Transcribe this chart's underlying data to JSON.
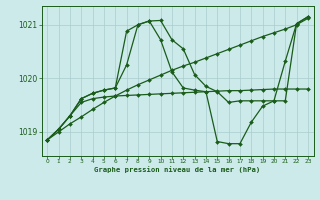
{
  "background_color": "#cceaea",
  "grid_color": "#aacccc",
  "line_color": "#1a5c1a",
  "title": "Graphe pression niveau de la mer (hPa)",
  "xlim": [
    -0.5,
    23.5
  ],
  "ylim": [
    1018.55,
    1021.35
  ],
  "yticks": [
    1019,
    1020,
    1021
  ],
  "xticks": [
    0,
    1,
    2,
    3,
    4,
    5,
    6,
    7,
    8,
    9,
    10,
    11,
    12,
    13,
    14,
    15,
    16,
    17,
    18,
    19,
    20,
    21,
    22,
    23
  ],
  "y_diag": [
    1018.85,
    1019.0,
    1019.15,
    1019.28,
    1019.42,
    1019.55,
    1019.67,
    1019.78,
    1019.88,
    1019.97,
    1020.06,
    1020.15,
    1020.23,
    1020.3,
    1020.38,
    1020.46,
    1020.54,
    1020.62,
    1020.7,
    1020.78,
    1020.85,
    1020.92,
    1021.0,
    1021.12
  ],
  "y_flat": [
    1018.85,
    1019.05,
    1019.3,
    1019.55,
    1019.62,
    1019.65,
    1019.67,
    1019.68,
    1019.69,
    1019.7,
    1019.71,
    1019.72,
    1019.73,
    1019.74,
    1019.75,
    1019.76,
    1019.77,
    1019.77,
    1019.78,
    1019.79,
    1019.8,
    1019.8,
    1019.8,
    1019.8
  ],
  "y_high": [
    1018.85,
    1019.05,
    1019.3,
    1019.62,
    1019.72,
    1019.78,
    1019.82,
    1020.88,
    1021.0,
    1021.07,
    1021.08,
    1020.72,
    1020.55,
    1020.07,
    1019.85,
    1019.75,
    1019.55,
    1019.58,
    1019.58,
    1019.58,
    1019.58,
    1020.32,
    1021.02,
    1021.15
  ],
  "y_low": [
    1018.85,
    1019.05,
    1019.3,
    1019.62,
    1019.72,
    1019.78,
    1019.82,
    1020.25,
    1021.0,
    1021.07,
    1020.72,
    1020.12,
    1019.82,
    1019.78,
    1019.75,
    1018.82,
    1018.78,
    1018.78,
    1019.18,
    1019.48,
    1019.58,
    1019.58,
    1021.02,
    1021.15
  ]
}
